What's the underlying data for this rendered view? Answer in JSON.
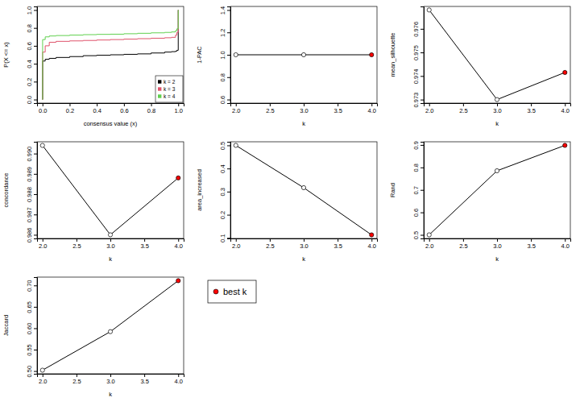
{
  "chart_data": [
    {
      "type": "line",
      "x_label": "consensus value (x)",
      "y_label": "P(X <= x)",
      "x": [
        0,
        0.001,
        0.02,
        0.05,
        0.1,
        0.2,
        0.3,
        0.4,
        0.5,
        0.6,
        0.7,
        0.8,
        0.9,
        0.95,
        0.98,
        0.99,
        1.0
      ],
      "series": [
        {
          "name": "k = 2",
          "color": "#000000",
          "values": [
            0,
            0.43,
            0.45,
            0.46,
            0.47,
            0.48,
            0.49,
            0.495,
            0.5,
            0.505,
            0.51,
            0.52,
            0.53,
            0.535,
            0.54,
            0.55,
            1.0
          ]
        },
        {
          "name": "k = 3",
          "color": "#df536b",
          "values": [
            0,
            0.53,
            0.6,
            0.64,
            0.65,
            0.655,
            0.66,
            0.665,
            0.67,
            0.675,
            0.68,
            0.685,
            0.69,
            0.695,
            0.72,
            0.75,
            1.0
          ]
        },
        {
          "name": "k = 4",
          "color": "#61d04f",
          "values": [
            0,
            0.67,
            0.7,
            0.71,
            0.715,
            0.72,
            0.725,
            0.728,
            0.73,
            0.735,
            0.74,
            0.745,
            0.75,
            0.755,
            0.77,
            0.79,
            1.0
          ]
        }
      ],
      "xlim": [
        -0.04,
        1.04
      ],
      "xticks": [
        {
          "value": 0,
          "label": "0.0"
        },
        {
          "value": 0.2,
          "label": "0.2"
        },
        {
          "value": 0.4,
          "label": "0.4"
        },
        {
          "value": 0.6,
          "label": "0.6"
        },
        {
          "value": 0.8,
          "label": "0.8"
        },
        {
          "value": 1,
          "label": "1.0"
        }
      ],
      "ylim": [
        -0.04,
        1.04
      ],
      "yticks": [
        {
          "value": 0,
          "label": "0.0"
        },
        {
          "value": 0.2,
          "label": "0.2"
        },
        {
          "value": 0.4,
          "label": "0.4"
        },
        {
          "value": 0.6,
          "label": "0.6"
        },
        {
          "value": 0.8,
          "label": "0.8"
        },
        {
          "value": 1,
          "label": "1.0"
        }
      ],
      "legend": "bottom-right",
      "line_style": "step"
    },
    {
      "type": "line",
      "x_label": "k",
      "y_label": "1-PAC",
      "x": [
        2,
        3,
        4
      ],
      "values": [
        1,
        1,
        1
      ],
      "color": "#000000",
      "colors": [
        "#ffffff",
        "#ffffff",
        "#ff0000"
      ],
      "marker": "circle",
      "xlim": [
        1.92,
        4.08
      ],
      "xticks": [
        {
          "value": 2,
          "label": "2.0"
        },
        2.5,
        {
          "value": 3,
          "label": "3.0"
        },
        3.5,
        {
          "value": 4,
          "label": "4.0"
        }
      ],
      "ylim": [
        0.568,
        1.432
      ],
      "yticks": [
        0.6,
        0.8,
        {
          "value": 1,
          "label": "1.0"
        },
        1.2,
        1.4
      ]
    },
    {
      "type": "line",
      "x_label": "k",
      "y_label": "mean_silhouette",
      "x": [
        2,
        3,
        4
      ],
      "values": [
        0.9768,
        0.973,
        0.97415
      ],
      "color": "#000000",
      "colors": [
        "#ffffff",
        "#ffffff",
        "#ff0000"
      ],
      "marker": "circle",
      "xlim": [
        1.92,
        4.08
      ],
      "xticks": [
        {
          "value": 2,
          "label": "2.0"
        },
        2.5,
        {
          "value": 3,
          "label": "3.0"
        },
        3.5,
        {
          "value": 4,
          "label": "4.0"
        }
      ],
      "ylim": [
        0.97285,
        0.97695
      ],
      "yticks": [
        0.973,
        0.974,
        0.975,
        0.976
      ]
    },
    {
      "type": "line",
      "x_label": "k",
      "y_label": "concordance",
      "x": [
        2,
        3,
        4
      ],
      "values": [
        0.9904,
        0.986,
        0.9888
      ],
      "color": "#000000",
      "colors": [
        "#ffffff",
        "#ffffff",
        "#ff0000"
      ],
      "marker": "circle",
      "xlim": [
        1.92,
        4.08
      ],
      "xticks": [
        {
          "value": 2,
          "label": "2.0"
        },
        2.5,
        {
          "value": 3,
          "label": "3.0"
        },
        3.5,
        {
          "value": 4,
          "label": "4.0"
        }
      ],
      "ylim": [
        0.98582,
        0.99058
      ],
      "yticks": [
        0.986,
        0.987,
        0.988,
        0.989,
        {
          "value": 0.99,
          "label": "0.990"
        }
      ]
    },
    {
      "type": "line",
      "x_label": "k",
      "y_label": "area_increased",
      "x": [
        2,
        3,
        4
      ],
      "values": [
        0.5,
        0.317,
        0.113
      ],
      "color": "#000000",
      "colors": [
        "#ffffff",
        "#ffffff",
        "#ff0000"
      ],
      "marker": "circle",
      "xlim": [
        1.92,
        4.08
      ],
      "xticks": [
        {
          "value": 2,
          "label": "2.0"
        },
        2.5,
        {
          "value": 3,
          "label": "3.0"
        },
        3.5,
        {
          "value": 4,
          "label": "4.0"
        }
      ],
      "ylim": [
        0.0975,
        0.5155
      ],
      "yticks": [
        0.1,
        0.2,
        0.3,
        0.4,
        0.5
      ]
    },
    {
      "type": "line",
      "x_label": "k",
      "y_label": "Rand",
      "x": [
        2,
        3,
        4
      ],
      "values": [
        0.5,
        0.785,
        0.898
      ],
      "color": "#000000",
      "colors": [
        "#ffffff",
        "#ffffff",
        "#ff0000"
      ],
      "marker": "circle",
      "xlim": [
        1.92,
        4.08
      ],
      "xticks": [
        {
          "value": 2,
          "label": "2.0"
        },
        2.5,
        {
          "value": 3,
          "label": "3.0"
        },
        3.5,
        {
          "value": 4,
          "label": "4.0"
        }
      ],
      "ylim": [
        0.484,
        0.914
      ],
      "yticks": [
        0.5,
        0.6,
        0.7,
        0.8,
        0.9
      ]
    },
    {
      "type": "line",
      "x_label": "k",
      "y_label": "Jaccard",
      "x": [
        2,
        3,
        4
      ],
      "values": [
        0.502,
        0.592,
        0.711
      ],
      "color": "#000000",
      "colors": [
        "#ffffff",
        "#ffffff",
        "#ff0000"
      ],
      "marker": "circle",
      "xlim": [
        1.92,
        4.08
      ],
      "xticks": [
        {
          "value": 2,
          "label": "2.0"
        },
        2.5,
        {
          "value": 3,
          "label": "3.0"
        },
        3.5,
        {
          "value": 4,
          "label": "4.0"
        }
      ],
      "ylim": [
        0.4936,
        0.7194
      ],
      "yticks": [
        {
          "value": 0.5,
          "label": "0.50"
        },
        0.55,
        {
          "value": 0.6,
          "label": "0.60"
        },
        0.65,
        {
          "value": 0.7,
          "label": "0.70"
        }
      ]
    },
    {
      "type": "legend",
      "legend": "top-left",
      "series": [
        {
          "name": "best k",
          "color": "#ff0000",
          "marker": "circle"
        }
      ]
    }
  ]
}
